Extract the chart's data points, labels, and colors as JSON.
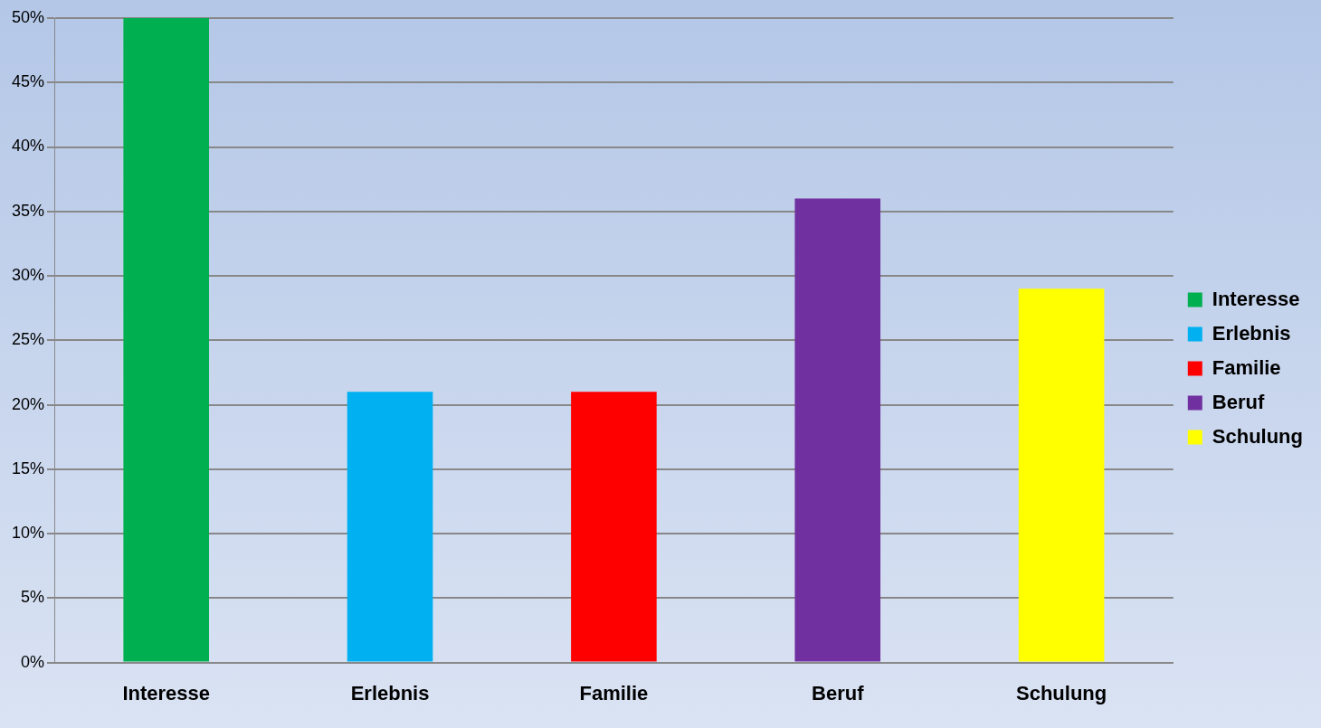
{
  "chart_data": {
    "type": "bar",
    "categories": [
      "Interesse",
      "Erlebnis",
      "Familie",
      "Beruf",
      "Schulung"
    ],
    "series": [
      {
        "name": "Interesse",
        "color": "#00b050",
        "values": [
          50,
          null,
          null,
          null,
          null
        ]
      },
      {
        "name": "Erlebnis",
        "color": "#00b0f0",
        "values": [
          null,
          21,
          null,
          null,
          null
        ]
      },
      {
        "name": "Familie",
        "color": "#ff0000",
        "values": [
          null,
          null,
          21,
          null,
          null
        ]
      },
      {
        "name": "Beruf",
        "color": "#7030a0",
        "values": [
          null,
          null,
          null,
          36,
          null
        ]
      },
      {
        "name": "Schulung",
        "color": "#ffff00",
        "values": [
          null,
          null,
          null,
          null,
          29
        ]
      }
    ],
    "ylim": [
      0,
      50
    ],
    "yticks": [
      {
        "value": 0,
        "label": "0%"
      },
      {
        "value": 5,
        "label": "5%"
      },
      {
        "value": 10,
        "label": "10%"
      },
      {
        "value": 15,
        "label": "15%"
      },
      {
        "value": 20,
        "label": "20%"
      },
      {
        "value": 25,
        "label": "25%"
      },
      {
        "value": 30,
        "label": "30%"
      },
      {
        "value": 35,
        "label": "35%"
      },
      {
        "value": 40,
        "label": "40%"
      },
      {
        "value": 45,
        "label": "45%"
      },
      {
        "value": 50,
        "label": "50%"
      }
    ],
    "grid": "y",
    "legend": "right"
  }
}
